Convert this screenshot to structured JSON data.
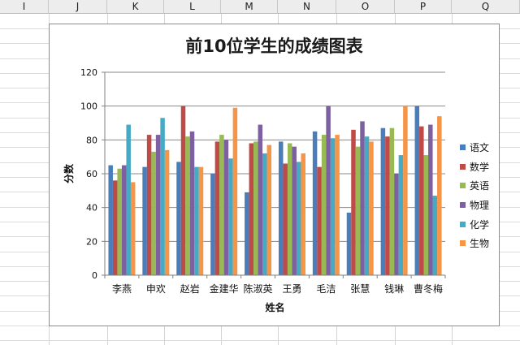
{
  "spreadsheet": {
    "columns": [
      "I",
      "J",
      "K",
      "L",
      "M",
      "N",
      "O",
      "P",
      "Q"
    ]
  },
  "chart_data": {
    "type": "bar",
    "title": "前10位学生的成绩图表",
    "xlabel": "姓名",
    "ylabel": "分数",
    "ylim": [
      0,
      120
    ],
    "yticks": [
      0,
      20,
      40,
      60,
      80,
      100,
      120
    ],
    "grid": true,
    "legend_position": "right",
    "categories": [
      "李燕",
      "申欢",
      "赵岩",
      "金建华",
      "陈淑英",
      "王勇",
      "毛洁",
      "张慧",
      "钱琳",
      "曹冬梅"
    ],
    "series": [
      {
        "name": "语文",
        "color": "#4a7ebb",
        "values": [
          65,
          64,
          67,
          60,
          49,
          79,
          85,
          37,
          87,
          100
        ]
      },
      {
        "name": "数学",
        "color": "#be4b48",
        "values": [
          56,
          83,
          100,
          79,
          78,
          66,
          64,
          86,
          82,
          88
        ]
      },
      {
        "name": "英语",
        "color": "#98b954",
        "values": [
          63,
          73,
          82,
          83,
          79,
          78,
          83,
          76,
          87,
          71
        ]
      },
      {
        "name": "物理",
        "color": "#7d60a0",
        "values": [
          65,
          83,
          85,
          80,
          89,
          76,
          100,
          91,
          60,
          89
        ]
      },
      {
        "name": "化学",
        "color": "#46aac5",
        "values": [
          89,
          93,
          64,
          69,
          72,
          67,
          81,
          82,
          71,
          47
        ]
      },
      {
        "name": "生物",
        "color": "#f69546",
        "values": [
          55,
          74,
          64,
          99,
          77,
          72,
          83,
          79,
          100,
          94
        ]
      }
    ]
  }
}
